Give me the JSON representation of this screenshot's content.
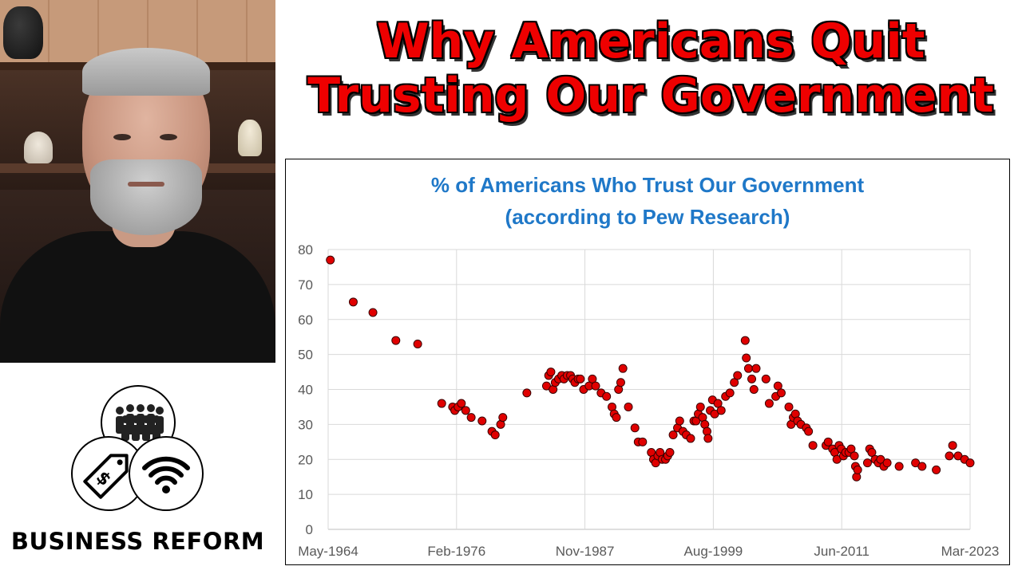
{
  "headline": {
    "line1": "Why Americans Quit",
    "line2": "Trusting Our Government"
  },
  "brand": {
    "name": "BUSINESS REFORM",
    "icons": [
      "people-group-icon",
      "price-tag-icon",
      "wifi-icon"
    ]
  },
  "colors": {
    "headline": "#ee0000",
    "chart_title": "#1f78c8",
    "marker": "#e00000"
  },
  "chart_data": {
    "type": "scatter",
    "title": "% of Americans Who Trust Our Government",
    "subtitle": "(according to Pew Research)",
    "xlabel": "",
    "ylabel": "",
    "x_tick_labels": [
      "May-1964",
      "Feb-1976",
      "Nov-1987",
      "Aug-1999",
      "Jun-2011",
      "Mar-2023"
    ],
    "x_range": [
      1964.4,
      2023.2
    ],
    "ylim": [
      0,
      80
    ],
    "y_ticks": [
      0,
      10,
      20,
      30,
      40,
      50,
      60,
      70,
      80
    ],
    "grid": true,
    "legend": "none",
    "points": [
      [
        1964.6,
        77
      ],
      [
        1966.7,
        65
      ],
      [
        1968.5,
        62
      ],
      [
        1970.6,
        54
      ],
      [
        1972.6,
        53
      ],
      [
        1974.8,
        36
      ],
      [
        1975.8,
        35
      ],
      [
        1976.0,
        34
      ],
      [
        1976.3,
        35
      ],
      [
        1976.6,
        36
      ],
      [
        1977.0,
        34
      ],
      [
        1977.5,
        32
      ],
      [
        1978.5,
        31
      ],
      [
        1979.4,
        28
      ],
      [
        1979.7,
        27
      ],
      [
        1980.2,
        30
      ],
      [
        1980.4,
        32
      ],
      [
        1982.6,
        39
      ],
      [
        1984.4,
        41
      ],
      [
        1984.6,
        44
      ],
      [
        1984.8,
        45
      ],
      [
        1985.0,
        40
      ],
      [
        1985.2,
        42
      ],
      [
        1985.5,
        43
      ],
      [
        1985.8,
        44
      ],
      [
        1986.0,
        43
      ],
      [
        1986.3,
        44
      ],
      [
        1986.6,
        44
      ],
      [
        1986.8,
        43
      ],
      [
        1987.0,
        42
      ],
      [
        1987.3,
        43
      ],
      [
        1987.5,
        43
      ],
      [
        1987.8,
        40
      ],
      [
        1988.3,
        41
      ],
      [
        1988.6,
        43
      ],
      [
        1988.9,
        41
      ],
      [
        1989.4,
        39
      ],
      [
        1989.9,
        38
      ],
      [
        1990.4,
        35
      ],
      [
        1990.6,
        33
      ],
      [
        1990.8,
        32
      ],
      [
        1991.0,
        40
      ],
      [
        1991.2,
        42
      ],
      [
        1991.4,
        46
      ],
      [
        1991.9,
        35
      ],
      [
        1992.5,
        29
      ],
      [
        1992.8,
        25
      ],
      [
        1993.2,
        25
      ],
      [
        1994.0,
        22
      ],
      [
        1994.2,
        20
      ],
      [
        1994.4,
        19
      ],
      [
        1994.6,
        21
      ],
      [
        1994.8,
        22
      ],
      [
        1995.0,
        20
      ],
      [
        1995.3,
        20
      ],
      [
        1995.5,
        21
      ],
      [
        1995.7,
        22
      ],
      [
        1996.0,
        27
      ],
      [
        1996.4,
        29
      ],
      [
        1996.6,
        31
      ],
      [
        1996.9,
        28
      ],
      [
        1997.2,
        27
      ],
      [
        1997.6,
        26
      ],
      [
        1997.9,
        31
      ],
      [
        1998.1,
        31
      ],
      [
        1998.3,
        33
      ],
      [
        1998.5,
        35
      ],
      [
        1998.7,
        32
      ],
      [
        1998.9,
        30
      ],
      [
        1999.1,
        28
      ],
      [
        1999.2,
        26
      ],
      [
        1999.4,
        34
      ],
      [
        1999.6,
        37
      ],
      [
        1999.8,
        33
      ],
      [
        2000.1,
        36
      ],
      [
        2000.4,
        34
      ],
      [
        2000.8,
        38
      ],
      [
        2001.2,
        39
      ],
      [
        2001.6,
        42
      ],
      [
        2001.9,
        44
      ],
      [
        2002.6,
        54
      ],
      [
        2002.7,
        49
      ],
      [
        2002.9,
        46
      ],
      [
        2003.2,
        43
      ],
      [
        2003.4,
        40
      ],
      [
        2003.6,
        46
      ],
      [
        2004.5,
        43
      ],
      [
        2004.8,
        36
      ],
      [
        2005.4,
        38
      ],
      [
        2005.6,
        41
      ],
      [
        2005.9,
        39
      ],
      [
        2006.6,
        35
      ],
      [
        2006.8,
        30
      ],
      [
        2007.0,
        32
      ],
      [
        2007.2,
        33
      ],
      [
        2007.4,
        31
      ],
      [
        2007.7,
        30
      ],
      [
        2008.2,
        29
      ],
      [
        2008.4,
        28
      ],
      [
        2008.8,
        24
      ],
      [
        2010.0,
        24
      ],
      [
        2010.2,
        25
      ],
      [
        2010.6,
        23
      ],
      [
        2010.8,
        22
      ],
      [
        2011.0,
        20
      ],
      [
        2011.2,
        24
      ],
      [
        2011.4,
        23
      ],
      [
        2011.6,
        21
      ],
      [
        2011.8,
        22
      ],
      [
        2012.1,
        22
      ],
      [
        2012.3,
        23
      ],
      [
        2012.6,
        21
      ],
      [
        2012.7,
        18
      ],
      [
        2012.8,
        15
      ],
      [
        2012.9,
        17
      ],
      [
        2013.8,
        19
      ],
      [
        2014.0,
        23
      ],
      [
        2014.2,
        22
      ],
      [
        2014.5,
        20
      ],
      [
        2014.8,
        19
      ],
      [
        2015.0,
        20
      ],
      [
        2015.3,
        18
      ],
      [
        2015.6,
        19
      ],
      [
        2016.7,
        18
      ],
      [
        2018.2,
        19
      ],
      [
        2018.8,
        18
      ],
      [
        2020.1,
        17
      ],
      [
        2021.3,
        21
      ],
      [
        2021.6,
        24
      ],
      [
        2022.1,
        21
      ],
      [
        2022.7,
        20
      ],
      [
        2023.2,
        19
      ]
    ]
  }
}
